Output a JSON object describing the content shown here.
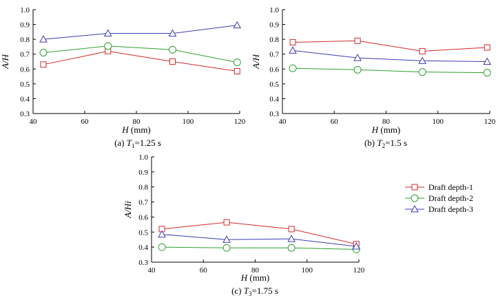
{
  "chart_data": [
    {
      "type": "line",
      "caption_prefix": "(a) ",
      "caption_var": "T",
      "caption_sub": "1",
      "caption_value": "1.25 s",
      "xlabel_var": "H",
      "xlabel_unit": " (mm)",
      "ylabel": "A/H",
      "xlim": [
        40,
        120
      ],
      "ylim": [
        0.3,
        1.0
      ],
      "xticks": [
        40,
        60,
        80,
        100,
        120
      ],
      "yticks": [
        0.3,
        0.4,
        0.5,
        0.6,
        0.7,
        0.8,
        0.9,
        1.0
      ],
      "series": [
        {
          "name": "Draft depth-1",
          "x": [
            44,
            69,
            94,
            119
          ],
          "values": [
            0.63,
            0.72,
            0.65,
            0.585
          ]
        },
        {
          "name": "Draft depth-2",
          "x": [
            44,
            69,
            94,
            119
          ],
          "values": [
            0.71,
            0.755,
            0.73,
            0.645
          ]
        },
        {
          "name": "Draft depth-3",
          "x": [
            44,
            69,
            94,
            119
          ],
          "values": [
            0.8,
            0.84,
            0.84,
            0.895
          ]
        }
      ]
    },
    {
      "type": "line",
      "caption_prefix": "(b) ",
      "caption_var": "T",
      "caption_sub": "2",
      "caption_value": "1.5 s",
      "xlabel_var": "H",
      "xlabel_unit": " (mm)",
      "ylabel": "A/H",
      "xlim": [
        40,
        120
      ],
      "ylim": [
        0.3,
        1.0
      ],
      "xticks": [
        40,
        60,
        80,
        100,
        120
      ],
      "yticks": [
        0.3,
        0.4,
        0.5,
        0.6,
        0.7,
        0.8,
        0.9,
        1.0
      ],
      "series": [
        {
          "name": "Draft depth-1",
          "x": [
            44,
            69,
            94,
            119
          ],
          "values": [
            0.78,
            0.79,
            0.72,
            0.745
          ]
        },
        {
          "name": "Draft depth-2",
          "x": [
            44,
            69,
            94,
            119
          ],
          "values": [
            0.605,
            0.595,
            0.58,
            0.575
          ]
        },
        {
          "name": "Draft depth-3",
          "x": [
            44,
            69,
            94,
            119
          ],
          "values": [
            0.725,
            0.675,
            0.655,
            0.65
          ]
        }
      ]
    },
    {
      "type": "line",
      "caption_prefix": "(c) ",
      "caption_var": "T",
      "caption_sub": "3",
      "caption_value": "1.75 s",
      "xlabel_var": "H",
      "xlabel_unit": " (mm)",
      "ylabel": "A/Hi",
      "xlim": [
        40,
        120
      ],
      "ylim": [
        0.3,
        1.0
      ],
      "xticks": [
        40,
        60,
        80,
        100,
        120
      ],
      "yticks": [
        0.3,
        0.4,
        0.5,
        0.6,
        0.7,
        0.8,
        0.9,
        1.0
      ],
      "series": [
        {
          "name": "Draft depth-1",
          "x": [
            44,
            69,
            94,
            119
          ],
          "values": [
            0.52,
            0.565,
            0.52,
            0.42
          ]
        },
        {
          "name": "Draft depth-2",
          "x": [
            44,
            69,
            94,
            119
          ],
          "values": [
            0.4,
            0.395,
            0.395,
            0.385
          ]
        },
        {
          "name": "Draft depth-3",
          "x": [
            44,
            69,
            94,
            119
          ],
          "values": [
            0.485,
            0.45,
            0.455,
            0.405
          ]
        }
      ]
    }
  ],
  "legend": {
    "placement": "right",
    "entries": [
      {
        "label": "Draft depth-1",
        "color": "#d62728",
        "marker": "square"
      },
      {
        "label": "Draft depth-2",
        "color": "#2ca02c",
        "marker": "circle"
      },
      {
        "label": "Draft depth-3",
        "color": "#3b3bb3",
        "marker": "triangle"
      }
    ]
  },
  "colors": {
    "depth1": "#d62728",
    "depth2": "#2ca02c",
    "depth3": "#3b3bb3"
  }
}
